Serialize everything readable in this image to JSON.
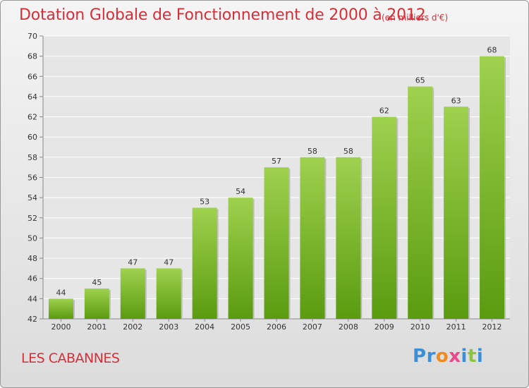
{
  "title": "Dotation Globale de Fonctionnement de 2000 à 2012",
  "subtitle": "(en milliers d'€)",
  "commune": "LES CABANNES",
  "logo": {
    "letters": [
      "P",
      "r",
      "o",
      "x",
      "i",
      "t",
      "i"
    ],
    "colors": [
      "#3a8fd6",
      "#3a8fd6",
      "#f08a1c",
      "#e84a8a",
      "#3a8fd6",
      "#8bc53f",
      "#3a8fd6"
    ]
  },
  "colors": {
    "accent": "#d4303a",
    "bar_top": "#9fd14e",
    "bar_bottom": "#5a9b10",
    "grid": "#ffffff",
    "text": "#333333"
  },
  "chart_data": {
    "type": "bar",
    "categories": [
      "2000",
      "2001",
      "2002",
      "2003",
      "2004",
      "2005",
      "2006",
      "2007",
      "2008",
      "2009",
      "2010",
      "2011",
      "2012"
    ],
    "values": [
      44,
      45,
      47,
      47,
      53,
      54,
      57,
      58,
      58,
      62,
      65,
      63,
      68
    ],
    "ylim": [
      42,
      70
    ],
    "yticks": [
      42,
      44,
      46,
      48,
      50,
      52,
      54,
      56,
      58,
      60,
      62,
      64,
      66,
      68,
      70
    ],
    "grid": true,
    "data_labels": true
  }
}
